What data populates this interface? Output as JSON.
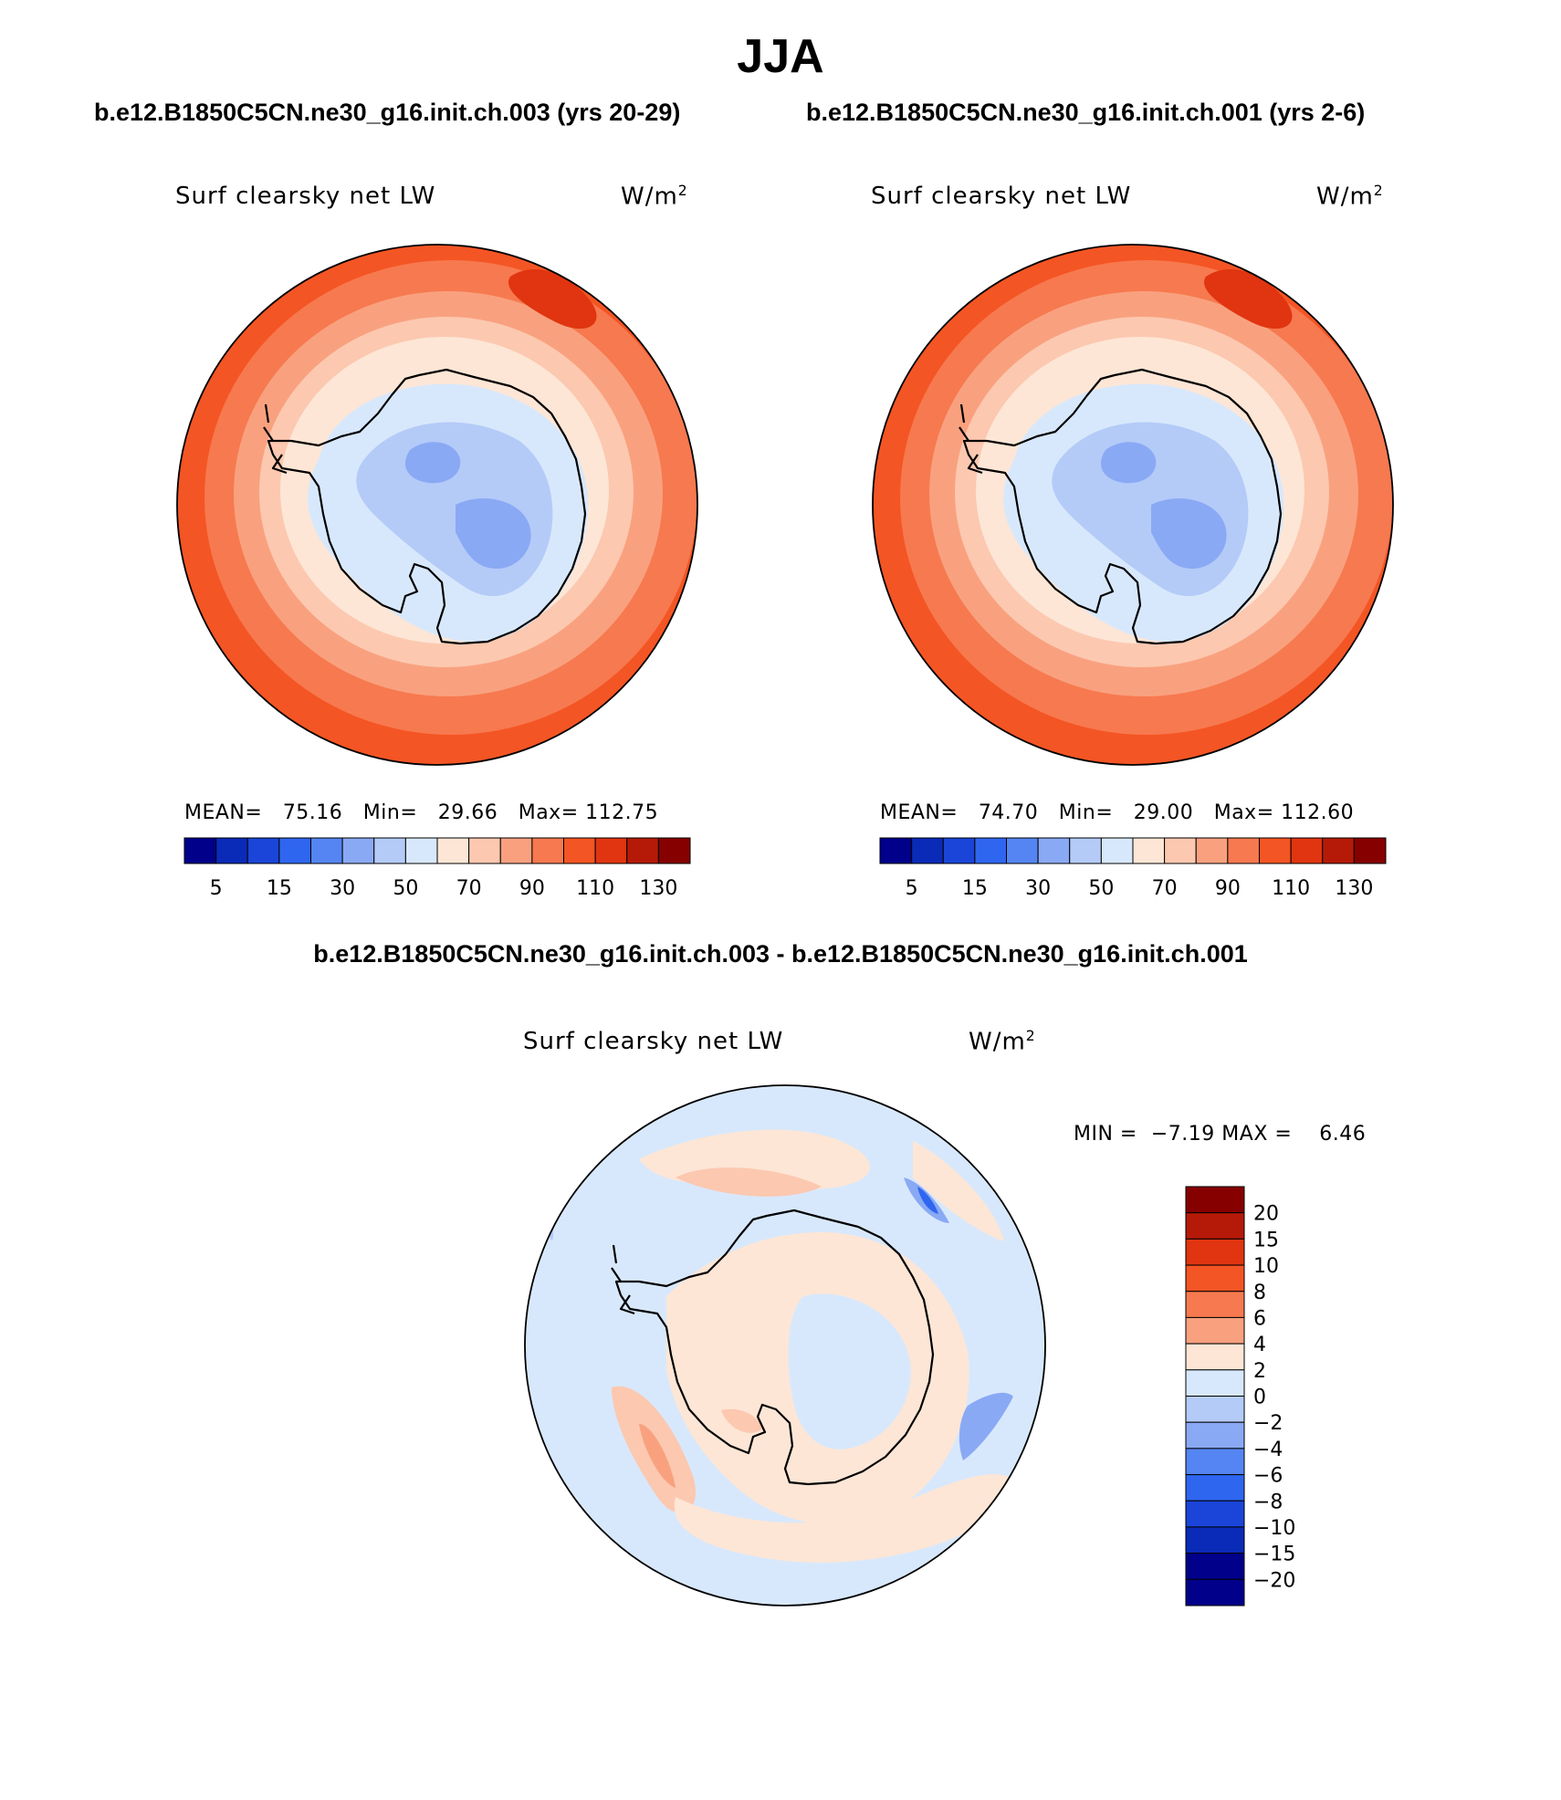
{
  "title": "JJA",
  "case_titles": [
    "b.e12.B1850C5CN.ne30_g16.init.ch.003 (yrs 20-29)",
    "b.e12.B1850C5CN.ne30_g16.init.ch.001 (yrs 2-6)"
  ],
  "diff_title": "b.e12.B1850C5CN.ne30_g16.init.ch.003 - b.e12.B1850C5CN.ne30_g16.init.ch.001",
  "variable": "Surf clearsky net LW",
  "units_base": "W/m",
  "units_exp": "2",
  "panels": [
    {
      "stats": {
        "mean_label": "MEAN=",
        "mean": "75.16",
        "min_label": "Min=",
        "min": "29.66",
        "max_label": "Max=",
        "max": "112.75"
      }
    },
    {
      "stats": {
        "mean_label": "MEAN=",
        "mean": "74.70",
        "min_label": "Min=",
        "min": "29.00",
        "max_label": "Max=",
        "max": "112.60"
      }
    }
  ],
  "diff_stats": {
    "min_label": "MIN =",
    "min": "−7.19",
    "max_label": "MAX =",
    "max": "6.46"
  },
  "colorbar_main": {
    "labels": [
      "5",
      "15",
      "30",
      "50",
      "70",
      "90",
      "110",
      "130"
    ],
    "colors": [
      "#00008b",
      "#0a2ab8",
      "#1a45d8",
      "#2f66f0",
      "#5585f2",
      "#8aa9f4",
      "#b4cbf8",
      "#d8e8fc",
      "#fde6d6",
      "#fcc8b0",
      "#f9a17f",
      "#f7794f",
      "#f45524",
      "#e03510",
      "#b51a08",
      "#870000"
    ]
  },
  "colorbar_diff": {
    "labels": [
      "20",
      "15",
      "10",
      "8",
      "6",
      "4",
      "2",
      "0",
      "−2",
      "−4",
      "−6",
      "−8",
      "−10",
      "−15",
      "−20"
    ],
    "colors": [
      "#870000",
      "#b51a08",
      "#e03510",
      "#f45524",
      "#f7794f",
      "#f9a17f",
      "#fde6d6",
      "#d8e8fc",
      "#b4cbf8",
      "#8aa9f4",
      "#5585f2",
      "#2f66f0",
      "#1a45d8",
      "#0a2ab8",
      "#00008b",
      "#00008b"
    ]
  }
}
